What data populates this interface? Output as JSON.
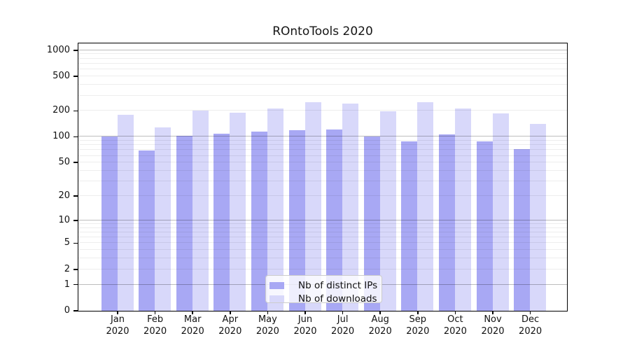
{
  "title": "ROntoTools 2020",
  "colors": {
    "ips": "#a8a8f4",
    "downloads": "#d8d8fa",
    "grid_major": "rgba(0,0,0,0.26)",
    "grid_minor": "rgba(0,0,0,0.07)",
    "spine": "#000000"
  },
  "legend": {
    "entries": [
      {
        "label": "Nb of distinct IPs",
        "color_key": "ips"
      },
      {
        "label": "Nb of downloads",
        "color_key": "downloads"
      }
    ],
    "position": "lower center"
  },
  "chart_data": {
    "type": "bar",
    "title": "ROntoTools 2020",
    "categories": [
      "Jan 2020",
      "Feb 2020",
      "Mar 2020",
      "Apr 2020",
      "May 2020",
      "Jun 2020",
      "Jul 2020",
      "Aug 2020",
      "Sep 2020",
      "Oct 2020",
      "Nov 2020",
      "Dec 2020"
    ],
    "series": [
      {
        "name": "Nb of distinct IPs",
        "values": [
          100,
          69,
          102,
          108,
          114,
          118,
          120,
          99,
          88,
          106,
          88,
          71
        ]
      },
      {
        "name": "Nb of downloads",
        "values": [
          178,
          128,
          198,
          190,
          209,
          249,
          240,
          197,
          250,
          212,
          185,
          140
        ]
      }
    ],
    "xlabel": "",
    "ylabel": "",
    "yscale": "log1p",
    "y_ticks": [
      0,
      1,
      2,
      5,
      10,
      20,
      50,
      100,
      200,
      500,
      1000
    ],
    "ylim": [
      0,
      1200
    ],
    "grid": "both",
    "legend_position": "lower center"
  }
}
